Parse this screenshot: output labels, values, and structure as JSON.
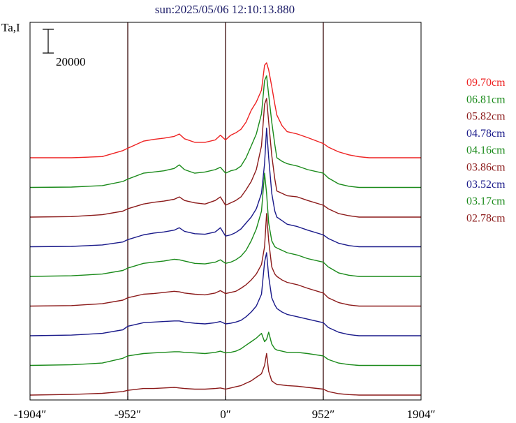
{
  "chart_data": {
    "type": "line",
    "title": "sun:2025/05/06 12:10:13.880",
    "ylabel": "Ta,I",
    "scale_bar_label": "20000",
    "scale_bar_value": 20000,
    "xlim": [
      -1904,
      1904
    ],
    "x_ticks": [
      {
        "value": -1904,
        "label": "-1904″"
      },
      {
        "value": -952,
        "label": "-952″"
      },
      {
        "value": 0,
        "label": "0″"
      },
      {
        "value": 952,
        "label": "952″"
      },
      {
        "value": 1904,
        "label": "1904″"
      }
    ],
    "vertical_lines": [
      -952,
      0,
      952
    ],
    "x": [
      -1904,
      -1500,
      -1200,
      -1000,
      -952,
      -800,
      -700,
      -600,
      -500,
      -450,
      -400,
      -300,
      -200,
      -100,
      -50,
      0,
      50,
      100,
      150,
      200,
      250,
      300,
      350,
      380,
      400,
      420,
      450,
      480,
      500,
      550,
      600,
      700,
      800,
      952,
      1000,
      1100,
      1200,
      1300,
      1400,
      1500,
      1904
    ],
    "series": [
      {
        "name": "09.70cm",
        "color": "#ee2222",
        "values": [
          0,
          0,
          1000,
          6000,
          8000,
          14000,
          15500,
          16500,
          18000,
          20000,
          16000,
          13000,
          13000,
          15000,
          19000,
          15000,
          19000,
          21000,
          24000,
          30000,
          40000,
          47000,
          57000,
          78000,
          80000,
          74000,
          60000,
          45000,
          36000,
          27000,
          22000,
          20000,
          17000,
          12000,
          9000,
          5000,
          2500,
          800,
          0,
          0,
          0
        ]
      },
      {
        "name": "06.81cm",
        "color": "#1a8a1a",
        "values": [
          0,
          300,
          1500,
          5000,
          7000,
          12000,
          13000,
          14000,
          16000,
          19000,
          15000,
          12000,
          13000,
          15000,
          17000,
          12000,
          14000,
          15000,
          18000,
          25000,
          35000,
          45000,
          62000,
          90000,
          94000,
          78000,
          55000,
          36000,
          25000,
          22000,
          20000,
          18000,
          15000,
          12000,
          8000,
          3000,
          1000,
          0,
          0,
          0,
          0
        ]
      },
      {
        "name": "05.82cm",
        "color": "#8b1a1a",
        "values": [
          0,
          400,
          2000,
          5000,
          7000,
          11000,
          12500,
          13500,
          15000,
          17000,
          14000,
          12000,
          11000,
          14000,
          17000,
          10000,
          12000,
          14000,
          17000,
          23000,
          30000,
          40000,
          60000,
          95000,
          100000,
          80000,
          52000,
          32000,
          22000,
          20000,
          18000,
          17000,
          14000,
          10000,
          7000,
          3000,
          1200,
          0,
          0,
          0,
          0
        ]
      },
      {
        "name": "04.78cm",
        "color": "#1a1a8a",
        "values": [
          0,
          300,
          1500,
          4000,
          6000,
          10000,
          11500,
          12500,
          14000,
          16000,
          13000,
          11000,
          10500,
          12500,
          16000,
          9000,
          10000,
          12000,
          15000,
          20000,
          25000,
          32000,
          45000,
          70000,
          100000,
          75000,
          45000,
          30000,
          25000,
          22000,
          19000,
          17000,
          14000,
          10000,
          7000,
          3000,
          1000,
          0,
          0,
          0,
          0
        ]
      },
      {
        "name": "04.16cm",
        "color": "#1a8a1a",
        "values": [
          0,
          500,
          2000,
          5000,
          7000,
          11000,
          12000,
          13000,
          14500,
          14000,
          13000,
          11000,
          10500,
          12000,
          14000,
          11000,
          12000,
          14000,
          17000,
          22000,
          30000,
          40000,
          55000,
          87000,
          70000,
          45000,
          30000,
          25000,
          24000,
          22000,
          20000,
          18000,
          15000,
          12000,
          8000,
          3000,
          1000,
          0,
          0,
          0,
          0
        ]
      },
      {
        "name": "03.86cm",
        "color": "#8b1a1a",
        "values": [
          0,
          400,
          2000,
          5000,
          7000,
          10000,
          10500,
          11500,
          12500,
          12000,
          11000,
          10000,
          9500,
          11000,
          13000,
          10500,
          11500,
          12500,
          15000,
          18000,
          22000,
          27000,
          35000,
          50000,
          78000,
          55000,
          33000,
          27000,
          25000,
          22000,
          20000,
          18000,
          15000,
          11000,
          7000,
          3000,
          1000,
          0,
          0,
          0,
          0
        ]
      },
      {
        "name": "03.52cm",
        "color": "#1a1a8a",
        "values": [
          0,
          500,
          2000,
          5000,
          8000,
          11000,
          11500,
          12000,
          12500,
          12500,
          11500,
          10500,
          10000,
          11000,
          12000,
          10000,
          10500,
          11500,
          13000,
          16000,
          20000,
          25000,
          35000,
          62000,
          70000,
          50000,
          32000,
          26000,
          23000,
          20000,
          18000,
          16000,
          14000,
          11000,
          7000,
          3000,
          1000,
          0,
          0,
          0,
          0
        ]
      },
      {
        "name": "03.17cm",
        "color": "#1a8a1a",
        "values": [
          0,
          500,
          2000,
          6000,
          8000,
          10000,
          10500,
          11000,
          11500,
          11500,
          11000,
          10500,
          10000,
          11000,
          12000,
          10500,
          11000,
          12000,
          14000,
          17000,
          20000,
          23000,
          27000,
          20000,
          22000,
          28000,
          18000,
          14000,
          13000,
          12000,
          11000,
          11000,
          10000,
          8000,
          5000,
          2000,
          700,
          0,
          0,
          0,
          0
        ]
      },
      {
        "name": "02.78cm",
        "color": "#8b1a1a",
        "values": [
          0,
          500,
          1500,
          3000,
          4000,
          5500,
          5500,
          6000,
          6500,
          6000,
          5500,
          5000,
          5000,
          5500,
          6000,
          5000,
          6000,
          7000,
          8000,
          10000,
          12000,
          15000,
          18000,
          25000,
          35000,
          20000,
          12000,
          10000,
          9000,
          8500,
          8000,
          7500,
          6500,
          5000,
          3000,
          1200,
          400,
          0,
          0,
          0,
          0
        ]
      }
    ],
    "colors": {
      "frame": "#000000",
      "vline": "#3a0a0a"
    }
  }
}
